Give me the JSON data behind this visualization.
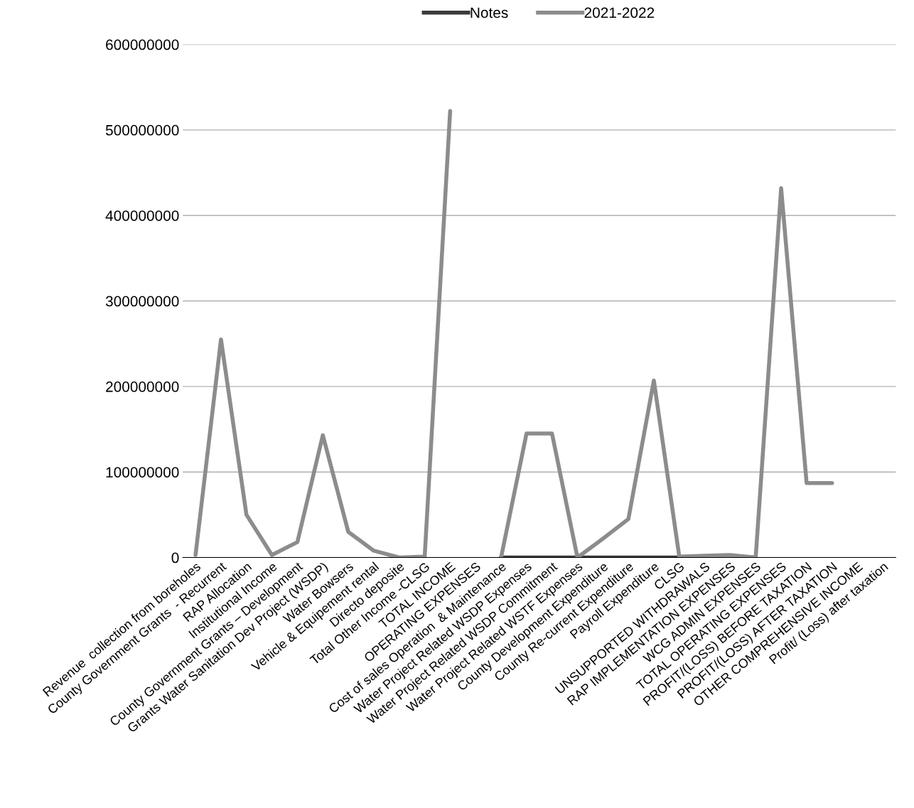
{
  "chart_data": {
    "type": "line",
    "categories": [
      "Revenue  collection from boreholes",
      "County Government Grants  - Recurrent",
      "RAP Allocation",
      "Institutional Income",
      "County Government Grants – Development",
      "Grants Water Sanitation Dev Project (WSDP)",
      "Water Bowsers",
      "Vehicle & Equipement rental",
      "Directo deposite",
      "Total Other Income -CLSG",
      "TOTAL INCOME",
      "OPERATING EXPENSES",
      "Cost of sales Operation  & Maintenance",
      "Water Project Related WSDP Expenses",
      "Water Project Related WSDP Commitment",
      "Water Project Related WSTF Expenses",
      "County Development Expenditure",
      "County Re-current Expenditure",
      "Payroll Expenditure",
      "CLSG",
      "UNSUPPORTED WITHDRAWALS",
      "RAP IMPLEMENTATION EXPENSES",
      "WCG ADMIN EXPENSES",
      "TOTAL OPERATING EXPENSES",
      "PROFIT/(LOSS) BEFORE TAXATION",
      "PROFIT/(LOSS) AFTER TAXATION",
      "OTHER COMPREHENSIVE INCOME",
      "Profit/ (Loss) after taxation"
    ],
    "series": [
      {
        "name": "Notes",
        "color": "#3a3a3a",
        "values": [
          null,
          null,
          null,
          null,
          null,
          null,
          null,
          null,
          null,
          null,
          null,
          null,
          0,
          0,
          0,
          0,
          0,
          0,
          0,
          0,
          0,
          0,
          0,
          null,
          null,
          null,
          null,
          null
        ]
      },
      {
        "name": "2021-2022",
        "color": "#8c8c8c",
        "values": [
          3000000,
          255000000,
          50000000,
          3000000,
          18000000,
          143000000,
          30000000,
          8000000,
          0,
          1000000,
          522000000,
          null,
          0,
          145000000,
          145000000,
          0,
          22000000,
          45000000,
          207000000,
          1000000,
          2000000,
          3000000,
          0,
          432000000,
          87000000,
          87000000,
          null,
          null
        ]
      }
    ],
    "ylim": [
      0,
      600000000
    ],
    "yticks": [
      0,
      100000000,
      200000000,
      300000000,
      400000000,
      500000000,
      600000000
    ],
    "grid": "y",
    "legend": "top",
    "marker": "none",
    "line_style": "solid"
  }
}
